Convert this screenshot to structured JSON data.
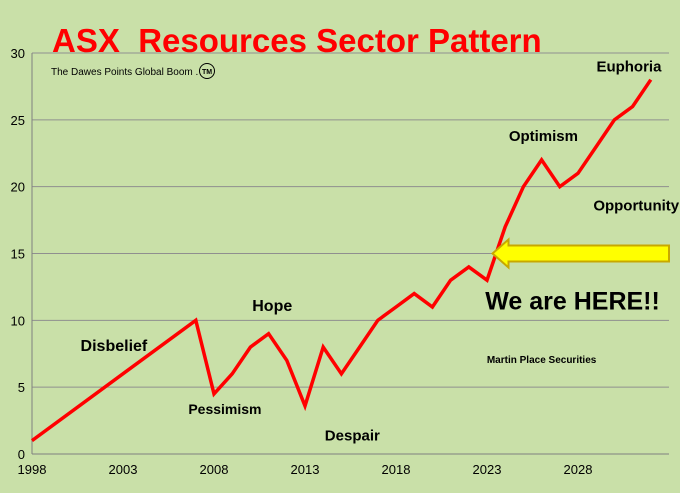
{
  "chart_data": {
    "type": "line",
    "title": "ASX  Resources Sector Pattern",
    "subtitle": "The Dawes Points Global Boom .",
    "trademark": "TM",
    "credit": "Martin Place Securities",
    "xlim": [
      1998,
      2033
    ],
    "ylim": [
      0,
      30
    ],
    "x_ticks": [
      1998,
      2003,
      2008,
      2013,
      2018,
      2023,
      2028
    ],
    "y_ticks": [
      0,
      5,
      10,
      15,
      20,
      25,
      30
    ],
    "grid": true,
    "series": [
      {
        "color": "#ff0000",
        "points": [
          [
            1998,
            1
          ],
          [
            2007,
            10
          ],
          [
            2008,
            4.5
          ],
          [
            2009,
            6
          ],
          [
            2010,
            8
          ],
          [
            2011,
            9
          ],
          [
            2012,
            7
          ],
          [
            2013,
            3.6
          ],
          [
            2014,
            8
          ],
          [
            2015,
            6
          ],
          [
            2016,
            8
          ],
          [
            2017,
            10
          ],
          [
            2018,
            11
          ],
          [
            2019,
            12
          ],
          [
            2020,
            11
          ],
          [
            2021,
            13
          ],
          [
            2022,
            14
          ],
          [
            2023,
            13
          ],
          [
            2024,
            17
          ],
          [
            2025,
            20
          ],
          [
            2026,
            22
          ],
          [
            2027,
            20
          ],
          [
            2028,
            21
          ],
          [
            2029,
            23
          ],
          [
            2030,
            25
          ],
          [
            2031,
            26
          ],
          [
            2032,
            28
          ]
        ]
      }
    ],
    "annotations": [
      {
        "text": "Euphoria",
        "x": 2030.8,
        "y": 28.6,
        "color": "#000000",
        "size": 15
      },
      {
        "text": "Optimism",
        "x": 2026.1,
        "y": 23.4,
        "color": "#000000",
        "size": 15
      },
      {
        "text": "Opportunity",
        "x": 2031.2,
        "y": 18.2,
        "color": "#000000",
        "size": 15
      },
      {
        "text": "Hope",
        "x": 2011.2,
        "y": 10.7,
        "color": "#000000",
        "size": 16
      },
      {
        "text": "Disbelief",
        "x": 2002.5,
        "y": 7.7,
        "color": "#000000",
        "size": 16
      },
      {
        "text": "Pessimism",
        "x": 2008.6,
        "y": 3.0,
        "color": "#000000",
        "size": 14
      },
      {
        "text": "Despair",
        "x": 2015.6,
        "y": 1.0,
        "color": "#ff0000",
        "size": 15
      },
      {
        "text": "We are HERE!!",
        "x": 2027.7,
        "y": 10.8,
        "color": "#ff0000",
        "size": 25
      },
      {
        "text": "Martin Place Securities",
        "x": 2026.0,
        "y": 6.8,
        "color": "#000000",
        "size": 10
      }
    ],
    "arrow": {
      "color": "#ffff00",
      "outline": "#c8a800",
      "y": 15,
      "x_tip": 2023.3,
      "x_tail": 2033
    }
  }
}
